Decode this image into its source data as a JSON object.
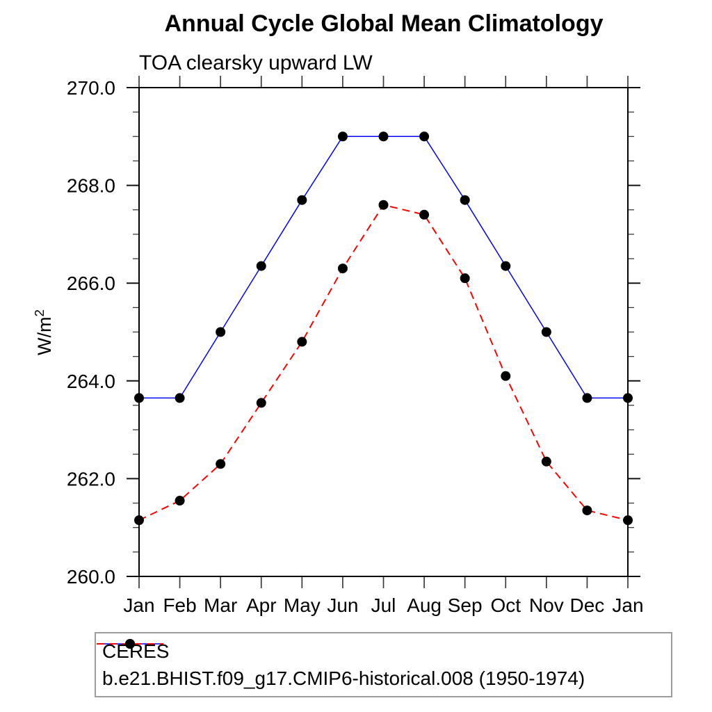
{
  "chart_data": {
    "type": "line",
    "title": "Annual Cycle Global Mean Climatology",
    "subtitle": "TOA clearsky upward LW",
    "ylabel_base": "W/m",
    "ylabel_sup": "2",
    "x": [
      "Jan",
      "Feb",
      "Mar",
      "Apr",
      "May",
      "Jun",
      "Jul",
      "Aug",
      "Sep",
      "Oct",
      "Nov",
      "Dec",
      "Jan"
    ],
    "ylim": [
      260.0,
      270.0
    ],
    "ytick_interval": 2.0,
    "ytick_minor_interval": 0.5,
    "ytick_labels": [
      "260.0",
      "262.0",
      "264.0",
      "266.0",
      "268.0",
      "270.0"
    ],
    "grid": false,
    "legend_position": "bottom-left",
    "series": [
      {
        "name": "CERES",
        "label": "CERES",
        "color": "#0000ff",
        "line_style": "solid",
        "marker": "filled-circle",
        "marker_color": "#000000",
        "values": [
          263.65,
          263.65,
          265.0,
          266.35,
          267.7,
          269.0,
          269.0,
          269.0,
          267.7,
          266.35,
          265.0,
          263.65,
          263.65
        ]
      },
      {
        "name": "b.e21.BHIST.f09_g17.CMIP6-historical.008",
        "label": "b.e21.BHIST.f09_g17.CMIP6-historical.008 (1950-1974)",
        "color": "#ff0000",
        "line_style": "dashed",
        "marker": "filled-circle",
        "marker_color": "#000000",
        "values": [
          261.15,
          261.55,
          262.3,
          263.55,
          264.8,
          266.3,
          267.6,
          267.4,
          266.1,
          264.1,
          262.35,
          261.35,
          261.15
        ]
      }
    ]
  }
}
